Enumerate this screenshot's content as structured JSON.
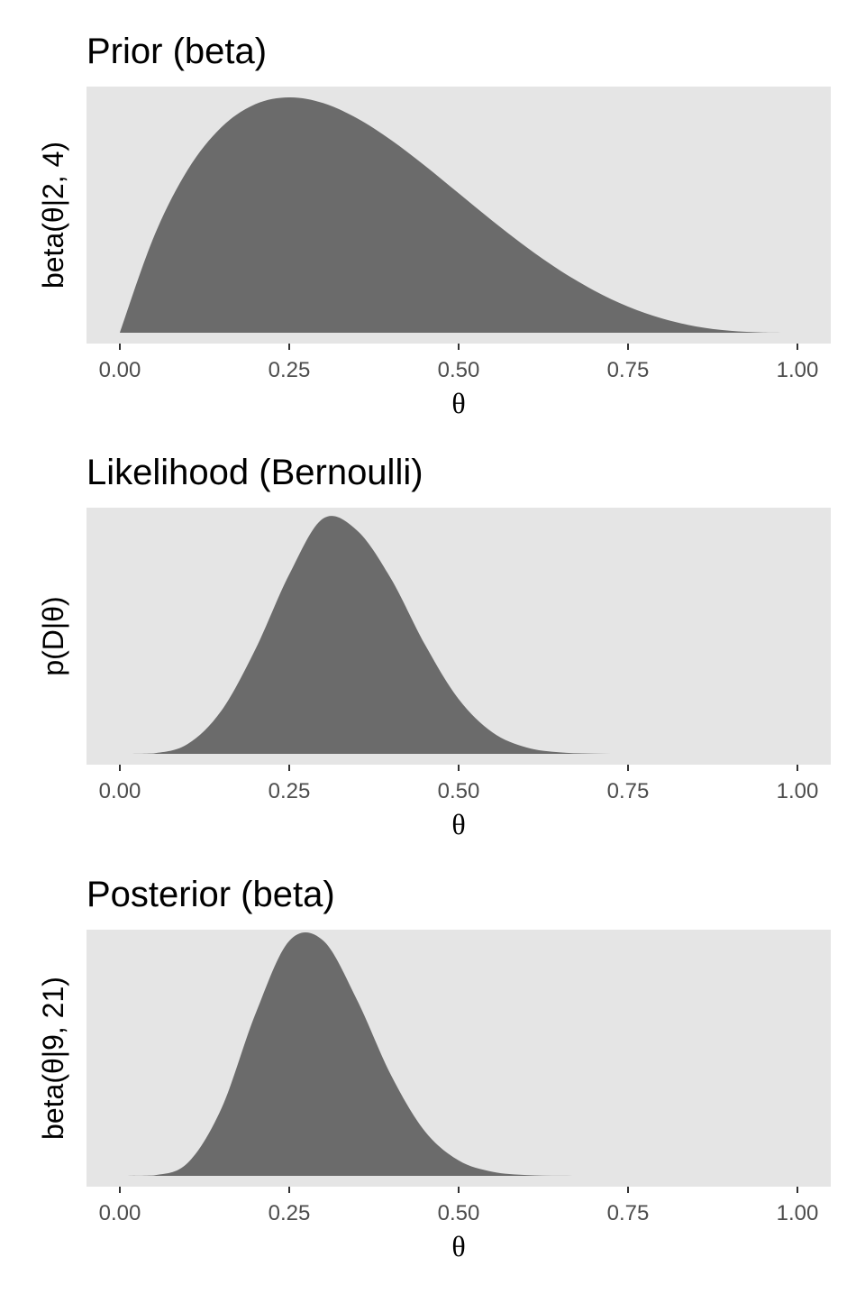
{
  "chart_data": [
    {
      "type": "area",
      "title": "Prior (beta)",
      "xlabel": "θ",
      "ylabel": "beta(θ|2, 4)",
      "xlim": [
        0,
        1
      ],
      "x_ticks": [
        "0.00",
        "0.25",
        "0.50",
        "0.75",
        "1.00"
      ],
      "y_ticks_shown": false,
      "grid": false,
      "fill_color": "#6b6b6b",
      "panel_background": "#e5e5e5",
      "series": [
        {
          "x": [
            0.0,
            0.05,
            0.1,
            0.15,
            0.2,
            0.25,
            0.3,
            0.35,
            0.4,
            0.45,
            0.5,
            0.55,
            0.6,
            0.65,
            0.7,
            0.75,
            0.8,
            0.85,
            0.9,
            0.95,
            1.0
          ],
          "y": [
            0.0,
            0.857,
            1.458,
            1.842,
            2.048,
            2.109,
            2.058,
            1.922,
            1.728,
            1.498,
            1.25,
            1.002,
            0.768,
            0.557,
            0.378,
            0.234,
            0.128,
            0.057,
            0.018,
            0.002,
            0.0
          ]
        }
      ]
    },
    {
      "type": "area",
      "title": "Likelihood (Bernoulli)",
      "xlabel": "θ",
      "ylabel": "p(D|θ)",
      "xlim": [
        0,
        1
      ],
      "x_ticks": [
        "0.00",
        "0.25",
        "0.50",
        "0.75",
        "1.00"
      ],
      "y_ticks_shown": false,
      "grid": false,
      "fill_color": "#6b6b6b",
      "panel_background": "#e5e5e5",
      "series": [
        {
          "x": [
            0.0,
            0.05,
            0.1,
            0.15,
            0.2,
            0.25,
            0.3,
            0.35,
            0.4,
            0.45,
            0.5,
            0.55,
            0.6,
            0.65,
            0.7,
            0.75,
            0.8,
            0.85,
            0.9,
            0.95,
            1.0
          ],
          "y": [
            0.0,
            0.002,
            0.041,
            0.182,
            0.439,
            0.754,
            0.989,
            0.939,
            0.737,
            0.461,
            0.23,
            0.09,
            0.027,
            0.006,
            0.001,
            0.0,
            0.0,
            0.0,
            0.0,
            0.0,
            0.0
          ]
        }
      ]
    },
    {
      "type": "area",
      "title": "Posterior (beta)",
      "xlabel": "θ",
      "ylabel": "beta(θ|9, 21)",
      "xlim": [
        0,
        1
      ],
      "x_ticks": [
        "0.00",
        "0.25",
        "0.50",
        "0.75",
        "1.00"
      ],
      "y_ticks_shown": false,
      "grid": false,
      "fill_color": "#6b6b6b",
      "panel_background": "#e5e5e5",
      "series": [
        {
          "x": [
            0.0,
            0.05,
            0.1,
            0.15,
            0.2,
            0.25,
            0.3,
            0.35,
            0.4,
            0.45,
            0.5,
            0.55,
            0.6,
            0.65,
            0.7,
            0.75,
            0.8,
            0.85,
            0.9,
            0.95,
            1.0
          ],
          "y": [
            0.0,
            0.009,
            0.26,
            1.364,
            3.269,
            4.747,
            4.755,
            3.555,
            2.04,
            0.905,
            0.311,
            0.082,
            0.016,
            0.002,
            0.0,
            0.0,
            0.0,
            0.0,
            0.0,
            0.0,
            0.0
          ]
        }
      ]
    }
  ]
}
